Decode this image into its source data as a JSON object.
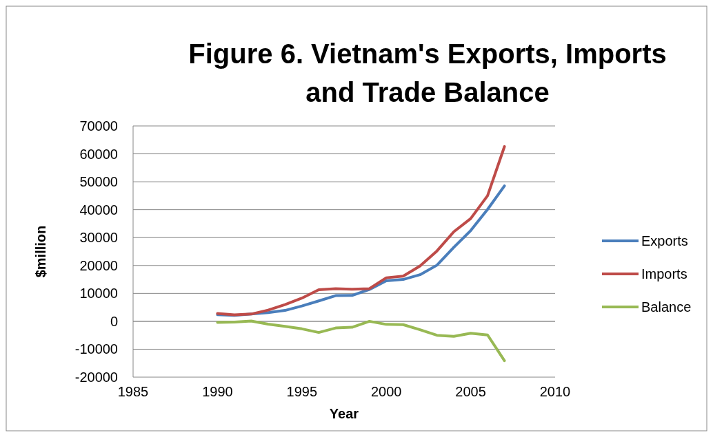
{
  "chart_data": {
    "type": "line",
    "title": "Figure 6. Vietnam's Exports, Imports and Trade Balance",
    "xlabel": "Year",
    "ylabel": "$million",
    "x": [
      1990,
      1991,
      1992,
      1993,
      1994,
      1995,
      1996,
      1997,
      1998,
      1999,
      2000,
      2001,
      2002,
      2003,
      2004,
      2005,
      2006,
      2007
    ],
    "series": [
      {
        "name": "Exports",
        "color": "#4a7ebb",
        "values": [
          2400,
          2100,
          2600,
          3100,
          3900,
          5500,
          7300,
          9200,
          9300,
          11400,
          14500,
          15000,
          16700,
          20100,
          26500,
          32500,
          40100,
          48500
        ]
      },
      {
        "name": "Imports",
        "color": "#be4b48",
        "values": [
          2800,
          2300,
          2600,
          4000,
          6000,
          8300,
          11300,
          11700,
          11500,
          11700,
          15600,
          16200,
          19800,
          25200,
          32100,
          36800,
          45000,
          62600
        ]
      },
      {
        "name": "Balance",
        "color": "#98b954",
        "values": [
          -400,
          -300,
          100,
          -1000,
          -1800,
          -2700,
          -4000,
          -2400,
          -2100,
          0,
          -1100,
          -1200,
          -3000,
          -5000,
          -5400,
          -4300,
          -4900,
          -14100
        ]
      }
    ],
    "xlim": [
      1985,
      2010
    ],
    "xticks": [
      1985,
      1990,
      1995,
      2000,
      2005,
      2010
    ],
    "ylim": [
      -20000,
      70000
    ],
    "yticks": [
      -20000,
      -10000,
      0,
      10000,
      20000,
      30000,
      40000,
      50000,
      60000,
      70000
    ],
    "grid": "y",
    "legend": "right",
    "marker": "none",
    "line_style": "solid"
  }
}
